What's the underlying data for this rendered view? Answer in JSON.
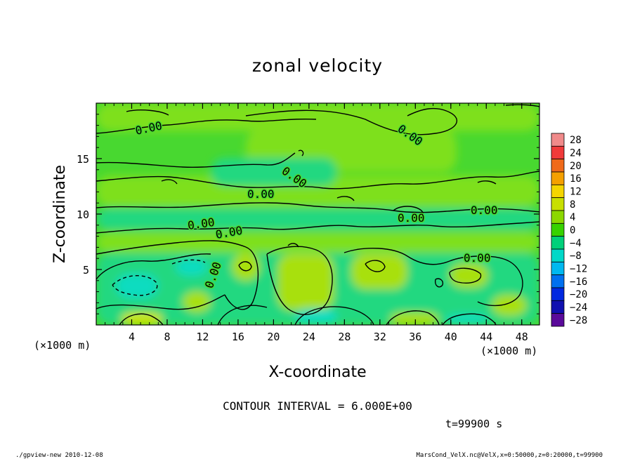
{
  "chart_data": {
    "type": "heatmap",
    "title": "zonal velocity",
    "xlabel": "X-coordinate",
    "ylabel": "Z-coordinate",
    "x_unit_label_left": "(×1000 m)",
    "x_unit_label_right": "(×1000 m)",
    "x_ticks": [
      "4",
      "8",
      "12",
      "16",
      "20",
      "24",
      "28",
      "32",
      "36",
      "40",
      "44",
      "48"
    ],
    "y_ticks": [
      "5",
      "10",
      "15"
    ],
    "xlim": [
      0,
      50
    ],
    "ylim": [
      0,
      20
    ],
    "contour_label": "0.00",
    "contour_interval_text": "CONTOUR INTERVAL = 6.000E+00",
    "time_text": "t=99900 s",
    "colorbar": {
      "labels": [
        "28",
        "24",
        "20",
        "16",
        "12",
        "8",
        "4",
        "0",
        "−4",
        "−8",
        "−12",
        "−16",
        "−20",
        "−24",
        "−28"
      ],
      "colors": [
        "#f08a8a",
        "#f03a3a",
        "#f06a1a",
        "#f5a000",
        "#f5d500",
        "#c8e000",
        "#8cd800",
        "#37d200",
        "#00d07a",
        "#00d8c8",
        "#00b8f0",
        "#0070f0",
        "#0028e0",
        "#1010b0",
        "#5a0a9a"
      ]
    },
    "field_colors": {
      "background": "#48d830",
      "light_green": "#7ee01e",
      "yellow_green": "#a8e010",
      "yellow": "#cce400",
      "teal": "#24d880",
      "cyan": "#10dcc0"
    }
  },
  "footer": {
    "left": "./gpview-new  2010-12-08",
    "right": "MarsCond_VelX.nc@VelX,x=0:50000,z=0:20000,t=99900"
  }
}
